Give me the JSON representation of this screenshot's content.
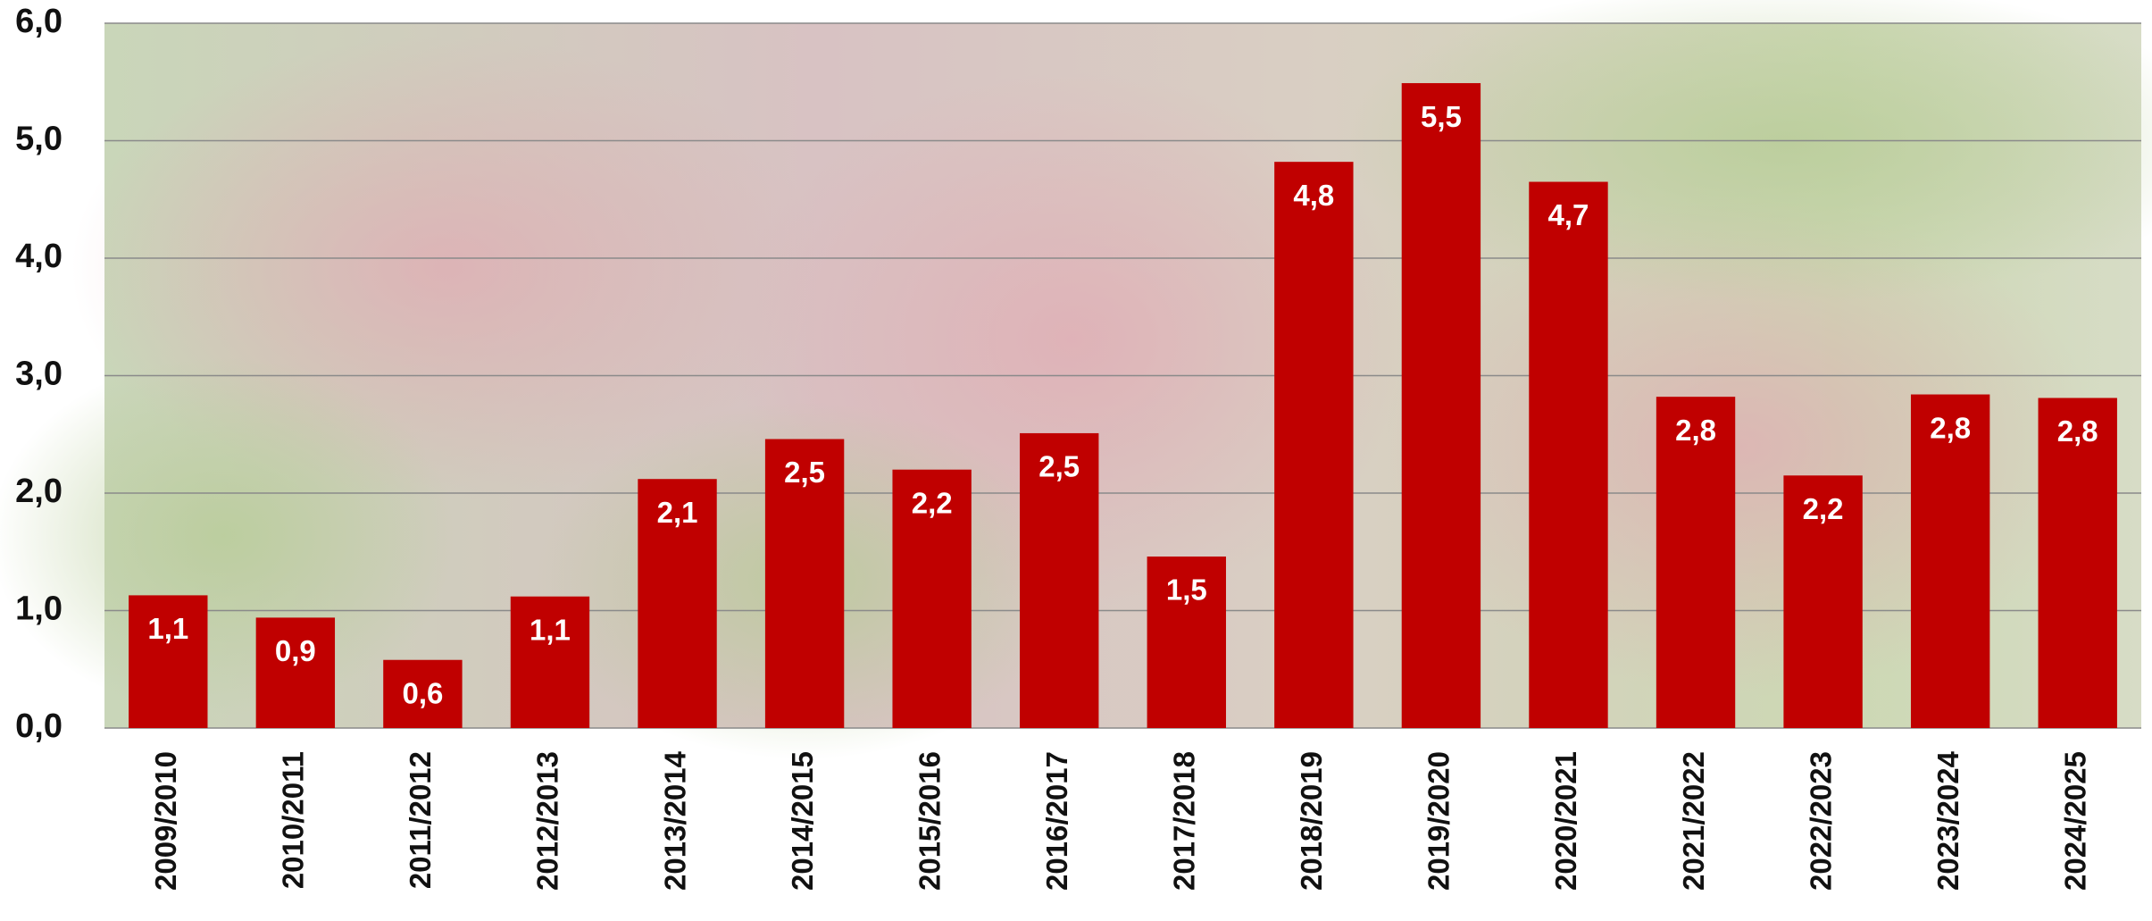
{
  "chart_data": {
    "type": "bar",
    "categories": [
      "2009/2010",
      "2010/2011",
      "2011/2012",
      "2012/2013",
      "2013/2014",
      "2014/2015",
      "2015/2016",
      "2016/2017",
      "2017/2018",
      "2018/2019",
      "2019/2020",
      "2020/2021",
      "2021/2022",
      "2022/2023",
      "2023/2024",
      "2024/2025"
    ],
    "values": [
      1.13,
      0.94,
      0.58,
      1.12,
      2.12,
      2.46,
      2.2,
      2.51,
      1.46,
      4.82,
      5.49,
      4.65,
      2.82,
      2.15,
      2.84,
      2.81
    ],
    "value_labels": [
      "1,1",
      "0,9",
      "0,6",
      "1,1",
      "2,1",
      "2,5",
      "2,2",
      "2,5",
      "1,5",
      "4,8",
      "5,5",
      "4,7",
      "2,8",
      "2,2",
      "2,8",
      "2,8"
    ],
    "color": "#c00000",
    "ylim": [
      0,
      6
    ],
    "yticks": [
      {
        "value": 0,
        "label": "0,0"
      },
      {
        "value": 1,
        "label": "1,0"
      },
      {
        "value": 2,
        "label": "2,0"
      },
      {
        "value": 3,
        "label": "3,0"
      },
      {
        "value": 4,
        "label": "4,0"
      },
      {
        "value": 5,
        "label": "5,0"
      },
      {
        "value": 6,
        "label": "6,0"
      }
    ],
    "grid": true
  }
}
